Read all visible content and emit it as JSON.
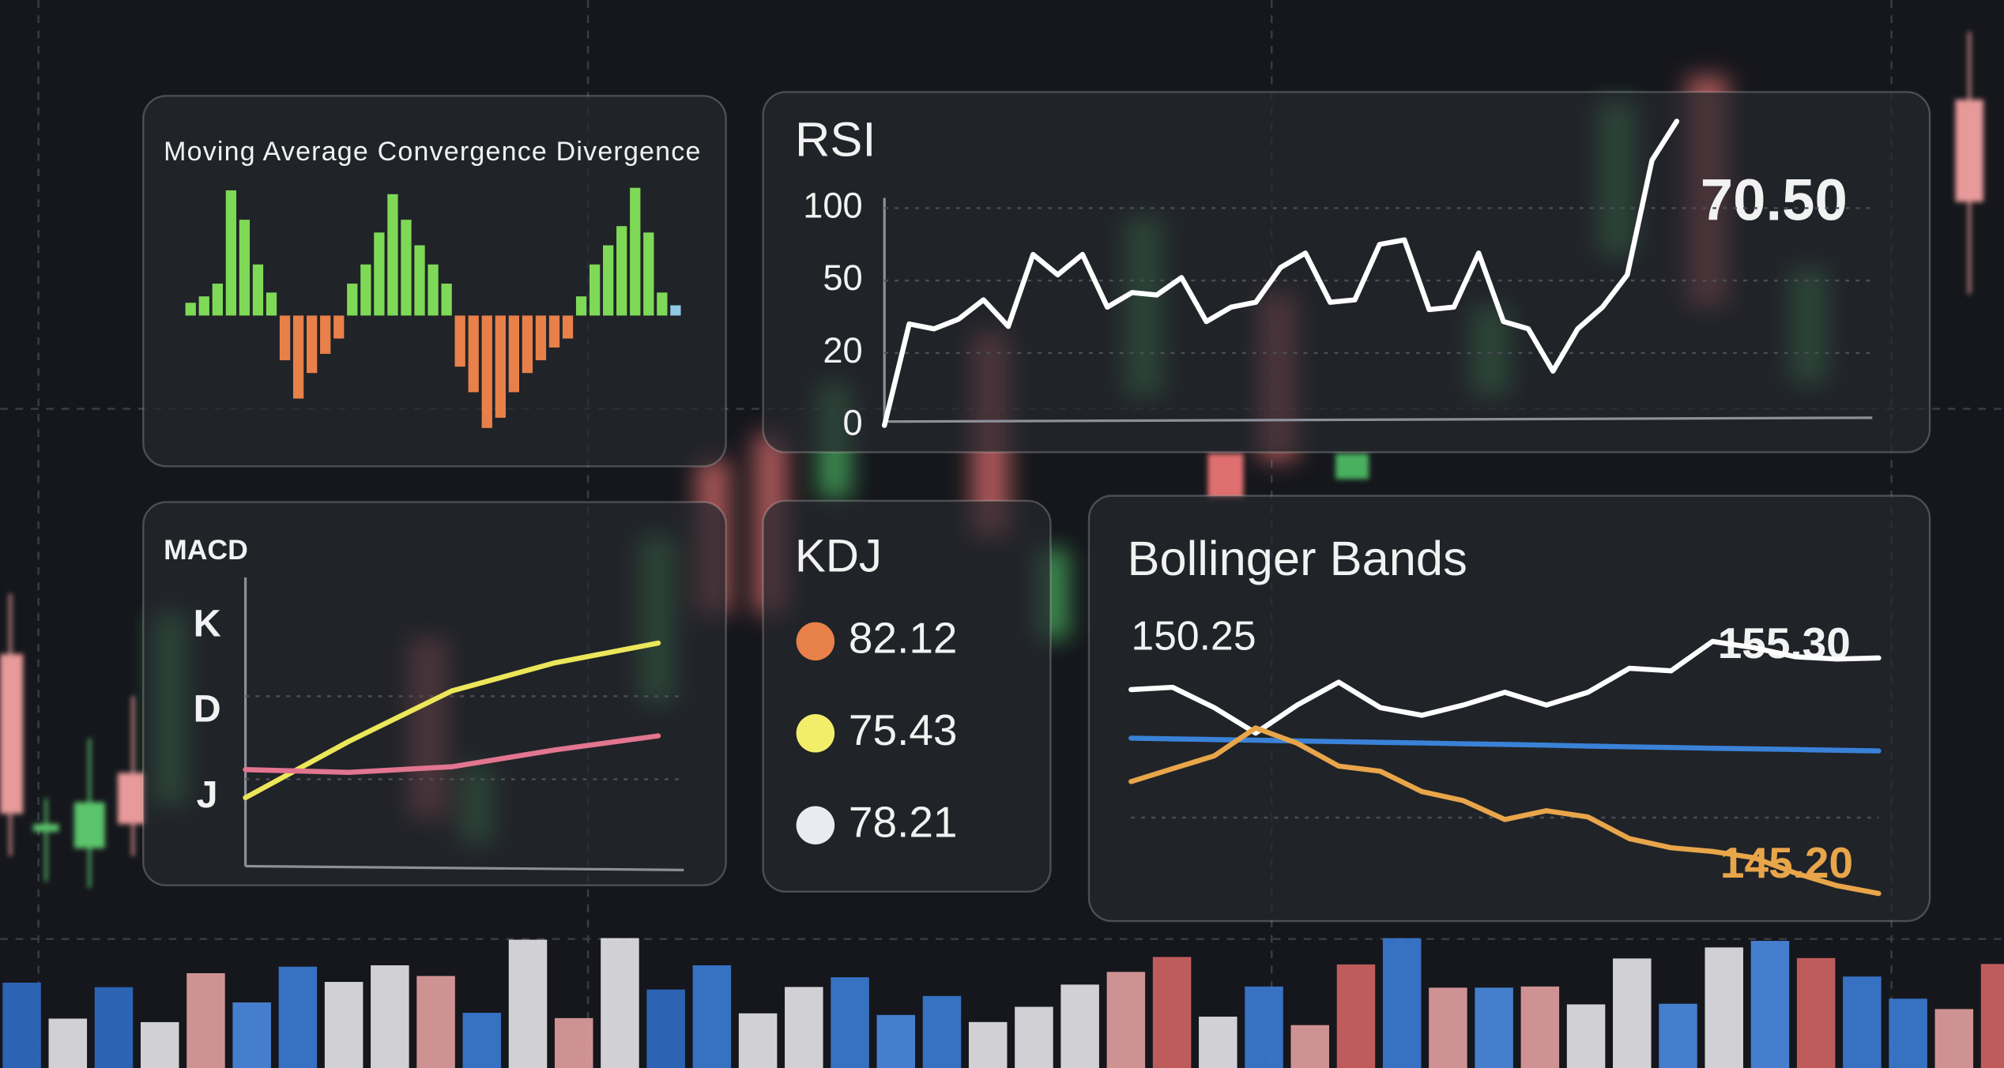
{
  "chart_data": [
    {
      "type": "bar",
      "title": "Moving Average Convergence Divergence",
      "values": [
        10,
        15,
        25,
        98,
        75,
        40,
        18,
        -35,
        -65,
        -45,
        -30,
        -18,
        25,
        40,
        65,
        95,
        75,
        55,
        40,
        25,
        -40,
        -60,
        -88,
        -80,
        -60,
        -45,
        -35,
        -25,
        -18,
        15,
        40,
        55,
        70,
        100,
        65,
        18,
        8
      ],
      "color_up": "#7ed957",
      "color_down": "#e8804a",
      "last_color": "#8ecae6"
    },
    {
      "type": "line",
      "title": "RSI",
      "yticks": [
        0,
        20,
        50,
        100
      ],
      "grid": true,
      "color": "#ffffff",
      "values": [
        0,
        32,
        30,
        34,
        42,
        31,
        68,
        54,
        68,
        39,
        45,
        44,
        52,
        33,
        39,
        41,
        59,
        69,
        41,
        42,
        75,
        78,
        38,
        39,
        69,
        33,
        30,
        15,
        30,
        39,
        54,
        133,
        160
      ],
      "annotation": "70.50"
    },
    {
      "type": "line",
      "title": "MACD",
      "ylabels": [
        "K",
        "D",
        "J"
      ],
      "ylim": [
        0,
        100
      ],
      "series": [
        {
          "color": "#ece65a",
          "values": [
            23,
            43,
            61,
            71,
            78
          ]
        },
        {
          "color": "#e27590",
          "values": [
            33,
            32,
            34,
            40,
            45
          ]
        }
      ]
    },
    {
      "type": "line",
      "title": "Bollinger Bands",
      "ylim": [
        145,
        157
      ],
      "annotations": [
        "150.25",
        "155.30",
        "145.20"
      ],
      "series": [
        {
          "color": "#ffffff",
          "values": [
            153.94,
            154.04,
            153.17,
            152.08,
            153.28,
            154.26,
            153.17,
            152.84,
            153.28,
            153.83,
            153.28,
            153.83,
            154.86,
            154.75,
            156.01,
            155.74,
            155.35,
            155.25,
            155.3
          ]
        },
        {
          "color": "#3a82d8",
          "values": [
            151.86,
            151.83,
            151.8,
            151.77,
            151.74,
            151.71,
            151.68,
            151.65,
            151.62,
            151.59,
            151.56,
            151.52,
            151.49,
            151.46,
            151.43,
            151.4,
            151.37,
            151.34,
            151.31
          ]
        },
        {
          "color": "#e8a54a",
          "values": [
            150.0,
            150.55,
            151.1,
            152.3,
            151.64,
            150.66,
            150.44,
            149.57,
            149.18,
            148.37,
            148.75,
            148.48,
            147.55,
            147.16,
            147.0,
            146.73,
            146.07,
            145.53,
            145.2
          ]
        }
      ]
    }
  ],
  "kdj": {
    "title": "KDJ",
    "items": [
      {
        "color": "#e8804a",
        "value": "82.12"
      },
      {
        "color": "#f2ee6a",
        "value": "75.43"
      },
      {
        "color": "#e9ebf0",
        "value": "78.21"
      }
    ]
  }
}
